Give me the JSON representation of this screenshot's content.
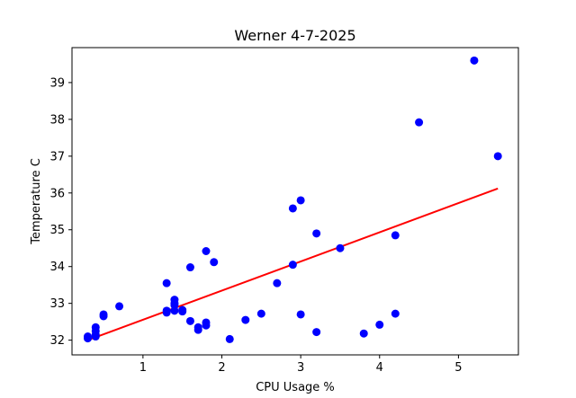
{
  "chart_data": {
    "type": "scatter",
    "title": "Werner 4-7-2025",
    "xlabel": "CPU Usage %",
    "ylabel": "Temperature C",
    "xlim": [
      0.1,
      5.76
    ],
    "ylim": [
      31.6,
      39.95
    ],
    "xticks": [
      "1",
      "2",
      "3",
      "4",
      "5"
    ],
    "yticks": [
      "32",
      "33",
      "34",
      "35",
      "36",
      "37",
      "38",
      "39"
    ],
    "grid": false,
    "legend": false,
    "series": [
      {
        "kind": "scatter",
        "color": "#0000ff",
        "x": [
          0.3,
          0.3,
          0.4,
          0.4,
          0.4,
          0.4,
          0.5,
          0.5,
          0.7,
          1.3,
          1.3,
          1.3,
          1.4,
          1.4,
          1.4,
          1.4,
          1.5,
          1.5,
          1.6,
          1.6,
          1.7,
          1.7,
          1.8,
          1.8,
          1.8,
          1.9,
          2.1,
          2.3,
          2.5,
          2.7,
          2.9,
          2.9,
          3.0,
          3.0,
          3.2,
          3.2,
          3.5,
          3.8,
          4.0,
          4.2,
          4.2,
          4.5,
          5.2,
          5.5
        ],
        "y": [
          32.05,
          32.1,
          32.15,
          32.25,
          32.35,
          32.1,
          32.65,
          32.7,
          32.92,
          32.75,
          32.8,
          33.55,
          32.8,
          33.0,
          33.1,
          32.95,
          32.78,
          32.82,
          32.52,
          33.98,
          32.28,
          32.35,
          32.4,
          32.48,
          34.42,
          34.12,
          32.03,
          32.55,
          32.72,
          33.55,
          35.58,
          34.05,
          35.8,
          32.7,
          32.22,
          34.9,
          34.5,
          32.18,
          32.42,
          32.72,
          34.85,
          37.92,
          39.6,
          37.0
        ]
      },
      {
        "kind": "line",
        "color": "#ff0000",
        "x": [
          0.3,
          5.5
        ],
        "y": [
          32.0,
          36.12
        ]
      }
    ]
  }
}
